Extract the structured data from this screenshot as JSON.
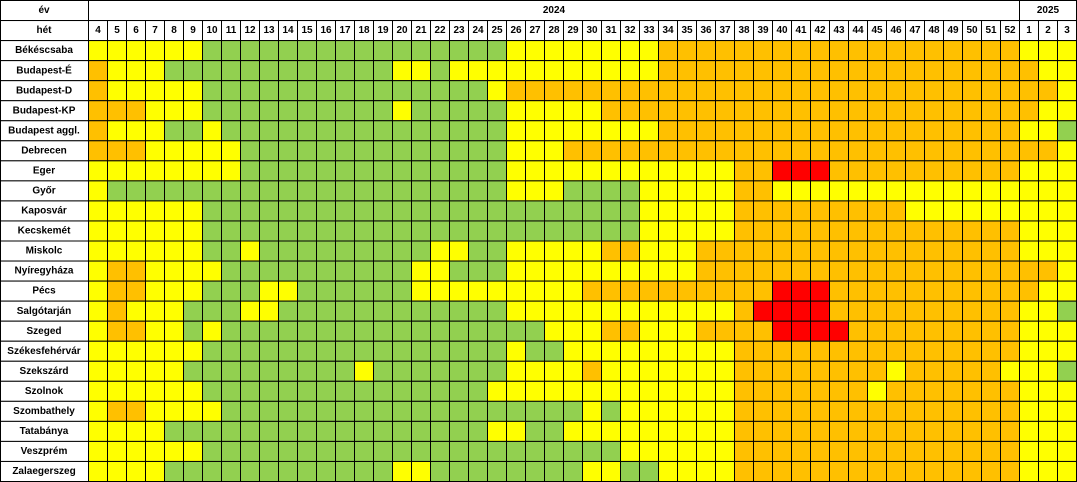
{
  "table": {
    "type": "heatmap",
    "year_header": "év",
    "week_header": "hét",
    "years": [
      "2024",
      "2025"
    ],
    "weeks": [
      [
        4,
        5,
        6,
        7,
        8,
        9,
        10,
        11,
        12,
        13,
        14,
        15,
        16,
        17,
        18,
        19,
        20,
        21,
        22,
        23,
        24,
        25,
        26,
        27,
        28,
        29,
        30,
        31,
        32,
        33,
        34,
        35,
        36,
        37,
        38,
        39,
        40,
        41,
        42,
        43,
        44,
        45,
        46,
        47,
        48,
        49,
        50,
        51,
        52
      ],
      [
        1,
        2,
        3
      ]
    ],
    "colors": [
      "#92d050",
      "#ffff00",
      "#ffc000",
      "#ff0000"
    ],
    "rows": [
      {
        "name": "Békéscsaba",
        "levels": [
          1,
          1,
          1,
          1,
          1,
          1,
          0,
          0,
          0,
          0,
          0,
          0,
          0,
          0,
          0,
          0,
          0,
          0,
          0,
          0,
          0,
          0,
          1,
          1,
          1,
          1,
          1,
          1,
          1,
          1,
          2,
          2,
          2,
          2,
          2,
          2,
          2,
          2,
          2,
          2,
          2,
          2,
          2,
          2,
          2,
          2,
          2,
          2,
          2,
          1,
          1,
          1
        ]
      },
      {
        "name": "Budapest-É",
        "levels": [
          2,
          1,
          1,
          1,
          0,
          0,
          0,
          0,
          0,
          0,
          0,
          0,
          0,
          0,
          0,
          0,
          1,
          1,
          0,
          1,
          1,
          1,
          1,
          1,
          1,
          1,
          1,
          1,
          1,
          1,
          2,
          2,
          2,
          2,
          2,
          2,
          2,
          2,
          2,
          2,
          2,
          2,
          2,
          2,
          2,
          2,
          2,
          2,
          2,
          2,
          1,
          1
        ]
      },
      {
        "name": "Budapest-D",
        "levels": [
          2,
          1,
          1,
          1,
          1,
          1,
          0,
          0,
          0,
          0,
          0,
          0,
          0,
          0,
          0,
          0,
          0,
          0,
          0,
          0,
          0,
          1,
          2,
          2,
          2,
          2,
          2,
          2,
          2,
          2,
          2,
          2,
          2,
          2,
          2,
          2,
          2,
          2,
          2,
          2,
          2,
          2,
          2,
          2,
          2,
          2,
          2,
          2,
          2,
          2,
          2,
          1
        ]
      },
      {
        "name": "Budapest-KP",
        "levels": [
          2,
          2,
          2,
          1,
          1,
          1,
          0,
          0,
          0,
          0,
          0,
          0,
          0,
          0,
          0,
          0,
          1,
          0,
          0,
          0,
          0,
          0,
          1,
          1,
          1,
          1,
          1,
          2,
          2,
          2,
          2,
          2,
          2,
          2,
          2,
          2,
          2,
          2,
          2,
          2,
          2,
          2,
          2,
          2,
          2,
          2,
          2,
          2,
          2,
          2,
          1,
          1
        ]
      },
      {
        "name": "Budapest aggl.",
        "levels": [
          2,
          1,
          1,
          1,
          0,
          0,
          1,
          0,
          0,
          0,
          0,
          0,
          0,
          0,
          0,
          0,
          0,
          0,
          0,
          0,
          0,
          0,
          1,
          1,
          1,
          1,
          1,
          1,
          1,
          1,
          2,
          2,
          2,
          2,
          2,
          2,
          2,
          2,
          2,
          2,
          2,
          2,
          2,
          2,
          2,
          2,
          2,
          2,
          2,
          1,
          1,
          0
        ]
      },
      {
        "name": "Debrecen",
        "levels": [
          2,
          2,
          2,
          1,
          1,
          1,
          1,
          1,
          0,
          0,
          0,
          0,
          0,
          0,
          0,
          0,
          0,
          0,
          0,
          0,
          0,
          0,
          1,
          1,
          1,
          2,
          2,
          2,
          2,
          2,
          2,
          2,
          2,
          2,
          2,
          2,
          2,
          2,
          2,
          2,
          2,
          2,
          2,
          2,
          2,
          2,
          2,
          2,
          2,
          2,
          2,
          1
        ]
      },
      {
        "name": "Eger",
        "levels": [
          1,
          1,
          1,
          1,
          1,
          1,
          1,
          1,
          0,
          0,
          0,
          0,
          0,
          0,
          0,
          0,
          0,
          0,
          0,
          0,
          0,
          0,
          1,
          1,
          1,
          1,
          1,
          1,
          1,
          1,
          1,
          1,
          1,
          1,
          2,
          2,
          3,
          3,
          3,
          2,
          2,
          2,
          2,
          2,
          2,
          2,
          2,
          2,
          2,
          1,
          1,
          1
        ]
      },
      {
        "name": "Győr",
        "levels": [
          1,
          0,
          0,
          0,
          0,
          0,
          0,
          0,
          0,
          0,
          0,
          0,
          0,
          0,
          0,
          0,
          0,
          0,
          0,
          0,
          0,
          0,
          1,
          1,
          1,
          0,
          0,
          0,
          0,
          1,
          1,
          1,
          1,
          1,
          2,
          2,
          1,
          1,
          1,
          1,
          1,
          1,
          1,
          1,
          1,
          1,
          1,
          1,
          1,
          1,
          1,
          1
        ]
      },
      {
        "name": "Kaposvár",
        "levels": [
          1,
          1,
          1,
          1,
          1,
          1,
          0,
          0,
          0,
          0,
          0,
          0,
          0,
          0,
          0,
          0,
          0,
          0,
          0,
          0,
          0,
          0,
          0,
          0,
          0,
          0,
          0,
          0,
          0,
          1,
          1,
          1,
          1,
          1,
          2,
          2,
          2,
          2,
          2,
          2,
          2,
          2,
          2,
          1,
          1,
          1,
          1,
          1,
          1,
          1,
          1,
          1
        ]
      },
      {
        "name": "Kecskemét",
        "levels": [
          1,
          1,
          1,
          1,
          1,
          1,
          0,
          0,
          0,
          0,
          0,
          0,
          0,
          0,
          0,
          0,
          0,
          0,
          0,
          0,
          0,
          0,
          0,
          0,
          0,
          0,
          0,
          0,
          0,
          1,
          1,
          1,
          1,
          1,
          2,
          2,
          2,
          2,
          2,
          2,
          2,
          2,
          2,
          2,
          2,
          2,
          2,
          2,
          2,
          1,
          1,
          1
        ]
      },
      {
        "name": "Miskolc",
        "levels": [
          1,
          1,
          1,
          1,
          1,
          1,
          0,
          0,
          1,
          0,
          0,
          0,
          0,
          0,
          0,
          0,
          0,
          0,
          1,
          1,
          0,
          0,
          1,
          1,
          1,
          1,
          1,
          2,
          2,
          1,
          1,
          1,
          2,
          2,
          2,
          2,
          2,
          2,
          2,
          2,
          2,
          2,
          2,
          2,
          2,
          2,
          2,
          2,
          2,
          1,
          1,
          1
        ]
      },
      {
        "name": "Nyíregyháza",
        "levels": [
          1,
          2,
          2,
          1,
          1,
          1,
          1,
          0,
          0,
          0,
          0,
          0,
          0,
          0,
          0,
          0,
          0,
          1,
          1,
          0,
          0,
          0,
          1,
          1,
          1,
          1,
          1,
          1,
          1,
          1,
          1,
          1,
          2,
          2,
          2,
          2,
          2,
          2,
          2,
          2,
          2,
          2,
          2,
          2,
          2,
          2,
          2,
          2,
          2,
          2,
          2,
          1
        ]
      },
      {
        "name": "Pécs",
        "levels": [
          1,
          2,
          2,
          1,
          1,
          1,
          0,
          0,
          0,
          1,
          1,
          0,
          0,
          0,
          0,
          0,
          0,
          1,
          1,
          1,
          1,
          1,
          1,
          1,
          1,
          1,
          2,
          2,
          2,
          2,
          2,
          2,
          2,
          2,
          2,
          2,
          3,
          3,
          3,
          2,
          2,
          2,
          2,
          2,
          2,
          2,
          2,
          2,
          2,
          2,
          1,
          1
        ]
      },
      {
        "name": "Salgótarján",
        "levels": [
          1,
          2,
          1,
          1,
          1,
          0,
          0,
          0,
          1,
          1,
          0,
          0,
          0,
          0,
          0,
          0,
          0,
          0,
          0,
          0,
          0,
          0,
          1,
          1,
          1,
          1,
          1,
          1,
          1,
          1,
          1,
          1,
          1,
          1,
          2,
          3,
          3,
          3,
          3,
          2,
          2,
          2,
          2,
          2,
          2,
          2,
          2,
          2,
          2,
          1,
          1,
          0
        ]
      },
      {
        "name": "Szeged",
        "levels": [
          1,
          2,
          2,
          1,
          1,
          0,
          1,
          0,
          0,
          0,
          0,
          0,
          0,
          0,
          0,
          0,
          0,
          0,
          0,
          0,
          0,
          0,
          0,
          0,
          1,
          1,
          1,
          2,
          2,
          1,
          1,
          1,
          2,
          2,
          2,
          2,
          3,
          3,
          3,
          3,
          2,
          2,
          2,
          2,
          2,
          2,
          2,
          2,
          2,
          1,
          1,
          1
        ]
      },
      {
        "name": "Székesfehérvár",
        "levels": [
          1,
          1,
          1,
          1,
          1,
          1,
          0,
          0,
          0,
          0,
          0,
          0,
          0,
          0,
          0,
          0,
          0,
          0,
          0,
          0,
          0,
          0,
          1,
          0,
          0,
          1,
          1,
          1,
          1,
          1,
          1,
          1,
          1,
          1,
          2,
          2,
          2,
          2,
          2,
          2,
          2,
          2,
          2,
          2,
          2,
          2,
          2,
          2,
          2,
          1,
          1,
          1
        ]
      },
      {
        "name": "Szekszárd",
        "levels": [
          1,
          1,
          1,
          1,
          1,
          0,
          0,
          0,
          0,
          0,
          0,
          0,
          0,
          0,
          1,
          0,
          0,
          0,
          0,
          0,
          0,
          0,
          1,
          1,
          1,
          1,
          2,
          1,
          1,
          1,
          1,
          1,
          1,
          1,
          2,
          2,
          2,
          2,
          2,
          2,
          2,
          2,
          1,
          2,
          2,
          2,
          2,
          2,
          1,
          1,
          1,
          0
        ]
      },
      {
        "name": "Szolnok",
        "levels": [
          1,
          1,
          1,
          1,
          1,
          1,
          0,
          0,
          0,
          0,
          0,
          0,
          0,
          0,
          0,
          0,
          0,
          0,
          0,
          0,
          0,
          1,
          1,
          1,
          1,
          1,
          1,
          1,
          1,
          1,
          1,
          1,
          1,
          1,
          2,
          2,
          2,
          2,
          2,
          2,
          2,
          1,
          2,
          2,
          2,
          2,
          2,
          2,
          2,
          1,
          1,
          1
        ]
      },
      {
        "name": "Szombathely",
        "levels": [
          1,
          2,
          2,
          1,
          1,
          1,
          1,
          0,
          0,
          0,
          0,
          0,
          0,
          0,
          0,
          0,
          0,
          0,
          0,
          0,
          0,
          0,
          0,
          0,
          0,
          0,
          1,
          0,
          1,
          1,
          1,
          1,
          1,
          1,
          2,
          2,
          2,
          2,
          2,
          2,
          2,
          2,
          2,
          2,
          2,
          2,
          2,
          2,
          2,
          1,
          1,
          1
        ]
      },
      {
        "name": "Tatabánya",
        "levels": [
          1,
          1,
          1,
          1,
          0,
          0,
          0,
          0,
          0,
          0,
          0,
          0,
          0,
          0,
          0,
          0,
          0,
          0,
          0,
          0,
          0,
          1,
          1,
          0,
          0,
          1,
          1,
          1,
          1,
          1,
          1,
          1,
          1,
          1,
          2,
          2,
          2,
          2,
          2,
          2,
          2,
          2,
          2,
          2,
          2,
          2,
          2,
          2,
          2,
          1,
          1,
          1
        ]
      },
      {
        "name": "Veszprém",
        "levels": [
          1,
          1,
          1,
          1,
          1,
          1,
          0,
          0,
          0,
          0,
          0,
          0,
          0,
          0,
          0,
          0,
          0,
          0,
          0,
          0,
          0,
          0,
          0,
          0,
          0,
          0,
          0,
          0,
          1,
          1,
          1,
          1,
          1,
          1,
          2,
          2,
          2,
          2,
          2,
          2,
          2,
          2,
          2,
          2,
          2,
          2,
          2,
          2,
          2,
          1,
          1,
          1
        ]
      },
      {
        "name": "Zalaegerszeg",
        "levels": [
          1,
          1,
          1,
          1,
          0,
          0,
          0,
          0,
          0,
          0,
          0,
          0,
          0,
          0,
          0,
          0,
          1,
          1,
          0,
          0,
          0,
          0,
          0,
          0,
          0,
          0,
          1,
          1,
          0,
          0,
          1,
          1,
          1,
          1,
          2,
          2,
          2,
          2,
          2,
          2,
          2,
          2,
          2,
          2,
          2,
          2,
          2,
          2,
          2,
          1,
          1,
          1
        ]
      }
    ]
  }
}
